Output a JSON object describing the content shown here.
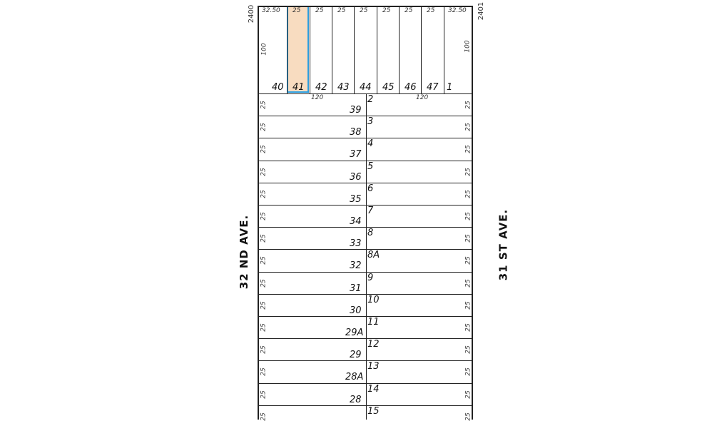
{
  "streets": {
    "left": "32 ND AVE.",
    "right": "31 ST AVE."
  },
  "block_numbers": {
    "left": "2400",
    "right": "2401"
  },
  "highlight_color": "#f8dcc0",
  "highlight_border": "#2fa0e0",
  "selected_lot": "41",
  "top_row": {
    "frontages": [
      "32.50",
      "25",
      "25",
      "25",
      "25",
      "25",
      "25",
      "25",
      "32.50"
    ],
    "lots": [
      "40",
      "41",
      "42",
      "43",
      "44",
      "45",
      "46",
      "47",
      "1"
    ],
    "depth_left": "100",
    "depth_right": "100"
  },
  "depth_labels": {
    "left": "120",
    "right": "120"
  },
  "rows": [
    {
      "left_lot": "39",
      "right_lot": "2",
      "left_dim": "25",
      "right_dim": "25"
    },
    {
      "left_lot": "38",
      "right_lot": "3",
      "left_dim": "25",
      "right_dim": "25"
    },
    {
      "left_lot": "37",
      "right_lot": "4",
      "left_dim": "25",
      "right_dim": "25"
    },
    {
      "left_lot": "36",
      "right_lot": "5",
      "left_dim": "25",
      "right_dim": "25"
    },
    {
      "left_lot": "35",
      "right_lot": "6",
      "left_dim": "25",
      "right_dim": "25"
    },
    {
      "left_lot": "34",
      "right_lot": "7",
      "left_dim": "25",
      "right_dim": "25"
    },
    {
      "left_lot": "33",
      "right_lot": "8",
      "left_dim": "25",
      "right_dim": "25"
    },
    {
      "left_lot": "32",
      "right_lot": "8A",
      "left_dim": "25",
      "right_dim": "25"
    },
    {
      "left_lot": "31",
      "right_lot": "9",
      "left_dim": "25",
      "right_dim": "25"
    },
    {
      "left_lot": "30",
      "right_lot": "10",
      "left_dim": "25",
      "right_dim": "25"
    },
    {
      "left_lot": "29A",
      "right_lot": "11",
      "left_dim": "25",
      "right_dim": "25"
    },
    {
      "left_lot": "29",
      "right_lot": "12",
      "left_dim": "25",
      "right_dim": "25"
    },
    {
      "left_lot": "28A",
      "right_lot": "13",
      "left_dim": "25",
      "right_dim": "25"
    },
    {
      "left_lot": "28",
      "right_lot": "14",
      "left_dim": "25",
      "right_dim": "25"
    },
    {
      "left_lot": "",
      "right_lot": "15",
      "left_dim": "25",
      "right_dim": "25"
    }
  ]
}
